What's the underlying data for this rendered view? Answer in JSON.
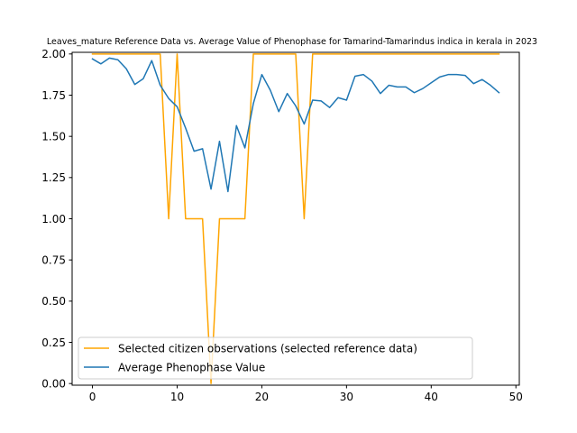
{
  "chart_data": {
    "type": "line",
    "title": "Leaves_mature Reference Data vs. Average Value of Phenophase for Tamarind-Tamarindus indica in kerala in 2023",
    "xlabel": "",
    "ylabel": "",
    "xlim": [
      -2.4,
      50.4
    ],
    "ylim": [
      -0.01,
      2.01
    ],
    "x_ticks": [
      0,
      10,
      20,
      30,
      40,
      50
    ],
    "y_ticks": [
      0.0,
      0.25,
      0.5,
      0.75,
      1.0,
      1.25,
      1.5,
      1.75,
      2.0
    ],
    "x_tick_labels": [
      "0",
      "10",
      "20",
      "30",
      "40",
      "50"
    ],
    "y_tick_labels": [
      "0.00",
      "0.25",
      "0.50",
      "0.75",
      "1.00",
      "1.25",
      "1.50",
      "1.75",
      "2.00"
    ],
    "grid": false,
    "legend_position": "lower-left",
    "series": [
      {
        "name": "Selected citizen observations (selected reference data)",
        "color": "#ffa500",
        "x": [
          0,
          1,
          2,
          3,
          4,
          5,
          6,
          7,
          8,
          9,
          10,
          11,
          12,
          13,
          14,
          15,
          16,
          17,
          18,
          19,
          20,
          21,
          22,
          23,
          24,
          25,
          26,
          27,
          28,
          29,
          30,
          31,
          32,
          33,
          34,
          35,
          36,
          37,
          38,
          39,
          40,
          41,
          42,
          43,
          44,
          45,
          46,
          47,
          48
        ],
        "y": [
          2,
          2,
          2,
          2,
          2,
          2,
          2,
          2,
          2,
          1,
          2,
          1,
          1,
          1,
          0,
          1,
          1,
          1,
          1,
          2,
          2,
          2,
          2,
          2,
          2,
          1,
          2,
          2,
          2,
          2,
          2,
          2,
          2,
          2,
          2,
          2,
          2,
          2,
          2,
          2,
          2,
          2,
          2,
          2,
          2,
          2,
          2,
          2,
          2
        ]
      },
      {
        "name": "Average Phenophase Value",
        "color": "#1f77b4",
        "x": [
          0,
          1,
          2,
          3,
          4,
          5,
          6,
          7,
          8,
          9,
          10,
          11,
          12,
          13,
          14,
          15,
          16,
          17,
          18,
          19,
          20,
          21,
          22,
          23,
          24,
          25,
          26,
          27,
          28,
          29,
          30,
          31,
          32,
          33,
          34,
          35,
          36,
          37,
          38,
          39,
          40,
          41,
          42,
          43,
          44,
          45,
          46,
          47,
          48
        ],
        "y": [
          1.97,
          1.94,
          1.975,
          1.965,
          1.91,
          1.815,
          1.85,
          1.96,
          1.81,
          1.73,
          1.68,
          1.55,
          1.41,
          1.425,
          1.18,
          1.47,
          1.165,
          1.565,
          1.43,
          1.7,
          1.875,
          1.78,
          1.65,
          1.76,
          1.685,
          1.575,
          1.72,
          1.715,
          1.675,
          1.735,
          1.72,
          1.865,
          1.875,
          1.835,
          1.76,
          1.81,
          1.8,
          1.8,
          1.765,
          1.79,
          1.825,
          1.86,
          1.875,
          1.875,
          1.87,
          1.82,
          1.845,
          1.81,
          1.765
        ]
      }
    ]
  }
}
